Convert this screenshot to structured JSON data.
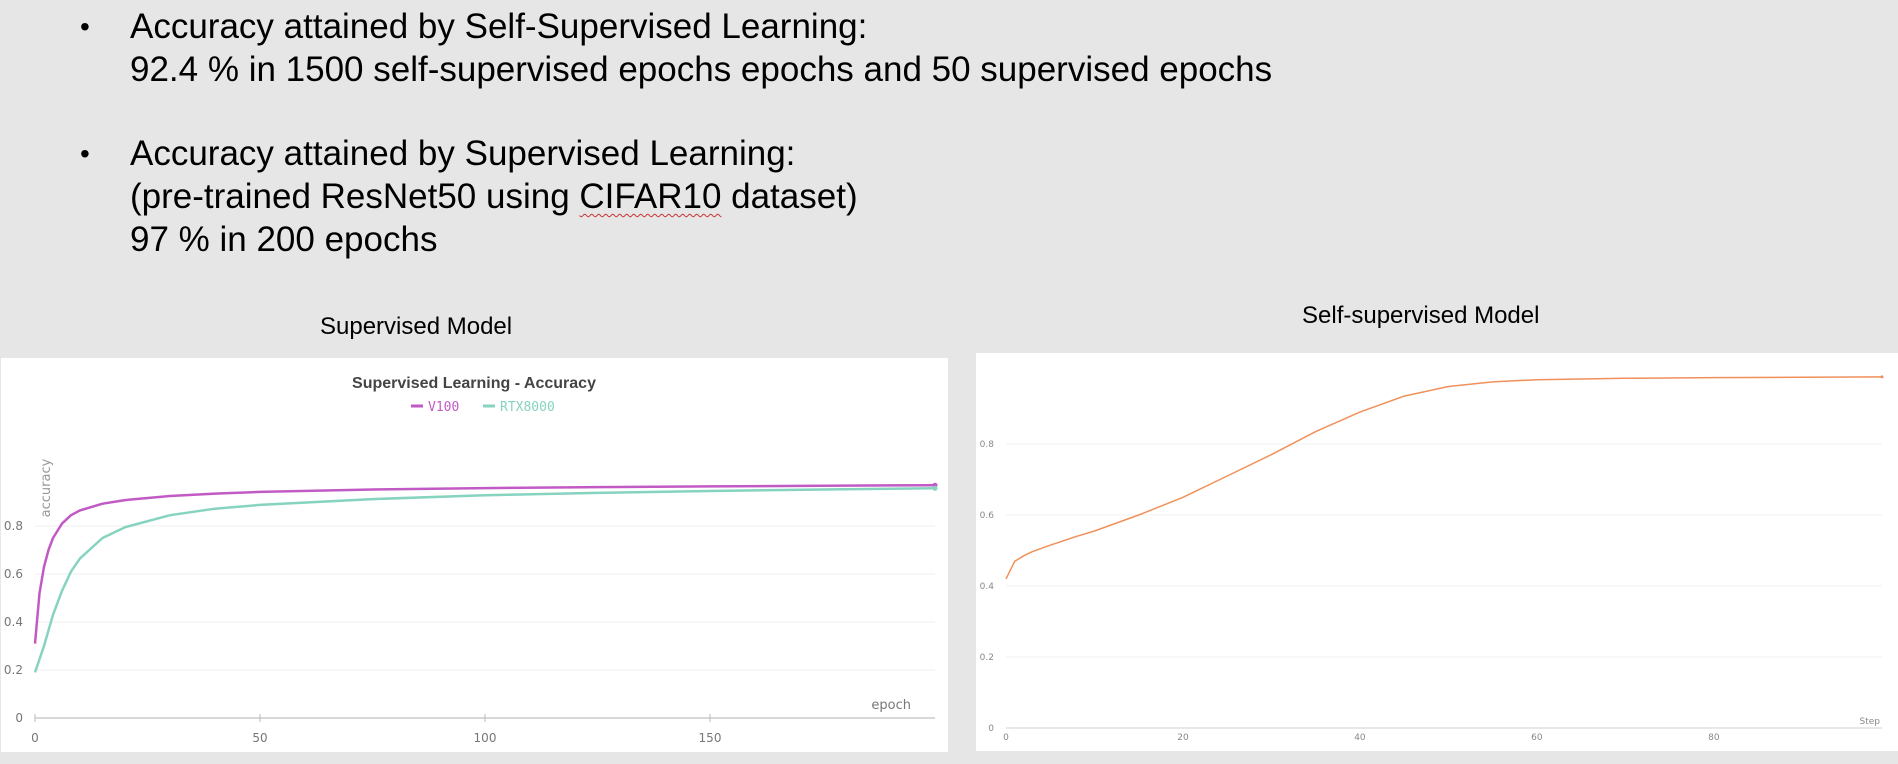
{
  "slide": {
    "bullet1": {
      "line1": "Accuracy attained by Self-Supervised Learning:",
      "line2": "92.4 % in 1500 self-supervised epochs epochs and 50 supervised epochs"
    },
    "bullet2": {
      "line1": "Accuracy attained by Supervised Learning:",
      "line2_pre": "(pre-trained ResNet50 using ",
      "line2_mark": "CIFAR10",
      "line2_post": " dataset)",
      "line3": "97 % in 200 epochs"
    },
    "bullet_glyph": "•"
  },
  "chart_data": [
    {
      "type": "line",
      "caption": "Supervised Model",
      "title": "Supervised Learning - Accuracy",
      "xlabel": "epoch",
      "ylabel": "accuracy",
      "xlim": [
        0,
        200
      ],
      "ylim": [
        0,
        1.0
      ],
      "xticks": [
        0,
        50,
        100,
        150
      ],
      "yticks": [
        0,
        0.2,
        0.4,
        0.6,
        0.8
      ],
      "grid": true,
      "legend": "top-center",
      "series": [
        {
          "name": "V100",
          "color": "#c25ac6",
          "x": [
            0,
            1,
            2,
            3,
            4,
            6,
            8,
            10,
            15,
            20,
            30,
            40,
            50,
            75,
            100,
            125,
            150,
            175,
            200
          ],
          "y": [
            0.31,
            0.52,
            0.63,
            0.7,
            0.75,
            0.81,
            0.845,
            0.865,
            0.893,
            0.908,
            0.925,
            0.935,
            0.942,
            0.952,
            0.958,
            0.962,
            0.965,
            0.968,
            0.97
          ]
        },
        {
          "name": "RTX8000",
          "color": "#86d3c0",
          "x": [
            0,
            2,
            4,
            6,
            8,
            10,
            15,
            20,
            30,
            40,
            50,
            75,
            100,
            125,
            150,
            175,
            200
          ],
          "y": [
            0.19,
            0.3,
            0.43,
            0.53,
            0.61,
            0.665,
            0.75,
            0.795,
            0.845,
            0.872,
            0.888,
            0.912,
            0.928,
            0.938,
            0.946,
            0.952,
            0.957
          ]
        }
      ]
    },
    {
      "type": "line",
      "caption": "Self-supervised Model",
      "xlabel": "Step",
      "xlim": [
        0,
        99
      ],
      "ylim": [
        0,
        1.0
      ],
      "xticks": [
        0,
        20,
        40,
        60,
        80
      ],
      "yticks": [
        0,
        0.2,
        0.4,
        0.6,
        0.8
      ],
      "grid": true,
      "series": [
        {
          "color": "#f0915a",
          "x": [
            0,
            1,
            2,
            3,
            5,
            8,
            10,
            15,
            20,
            25,
            30,
            35,
            40,
            45,
            50,
            55,
            60,
            70,
            80,
            90,
            99
          ],
          "y": [
            0.42,
            0.47,
            0.485,
            0.497,
            0.515,
            0.54,
            0.555,
            0.6,
            0.65,
            0.71,
            0.77,
            0.835,
            0.89,
            0.935,
            0.962,
            0.975,
            0.981,
            0.985,
            0.987,
            0.988,
            0.989
          ]
        }
      ]
    }
  ]
}
